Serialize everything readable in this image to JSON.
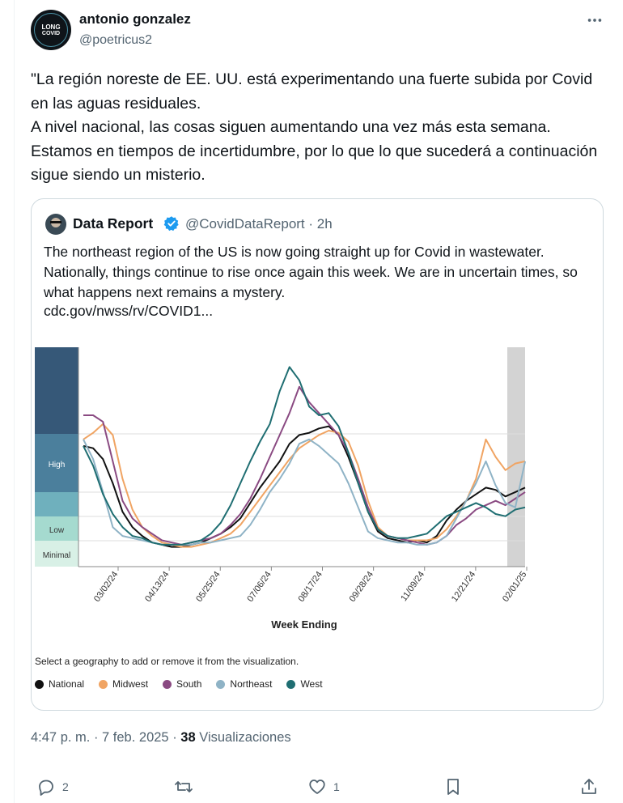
{
  "author": {
    "name": "antonio gonzalez",
    "handle": "@poetricus2",
    "avatar_text_top": "LONG",
    "avatar_text_bottom": "COVID"
  },
  "tweet_text": "\"La región noreste de EE. UU. está experimentando una fuerte subida por Covid en las aguas residuales.\n A nivel nacional, las cosas siguen aumentando una vez más esta semana. Estamos en tiempos de incertidumbre, por lo que lo que sucederá a continuación sigue siendo un misterio.",
  "quote": {
    "name": "Data Report",
    "handle": "@CovidDataReport · 2h",
    "text": "The northeast region of the US is now going straight up for Covid in wastewater. Nationally, things continue to rise once again this week. We are in uncertain times, so what happens next remains a mystery.",
    "link": "cdc.gov/nwss/rv/COVID1..."
  },
  "chart_data": {
    "type": "line",
    "xlabel": "Week Ending",
    "ylabel": "",
    "x_ticks": [
      "03/02/24",
      "04/13/24",
      "05/25/24",
      "07/06/24",
      "08/17/24",
      "09/28/24",
      "11/09/24",
      "12/21/24",
      "02/01/25"
    ],
    "levels": [
      "High",
      "Low",
      "Minimal"
    ],
    "ylim": [
      0,
      100
    ],
    "grid": true,
    "shaded_recent_weeks": true,
    "series": [
      {
        "name": "National",
        "color": "#111111",
        "values": [
          55,
          54,
          49,
          38,
          25,
          18,
          14,
          11,
          10,
          9,
          9,
          10,
          11,
          13,
          15,
          18,
          22,
          29,
          36,
          42,
          48,
          56,
          60,
          61,
          63,
          64,
          60,
          50,
          38,
          25,
          16,
          13,
          12,
          11,
          12,
          11,
          14,
          21,
          26,
          30,
          33,
          36,
          35,
          32,
          34,
          36
        ]
      },
      {
        "name": "Midwest",
        "color": "#f0a463",
        "values": [
          58,
          61,
          65,
          60,
          40,
          26,
          18,
          14,
          11,
          10,
          9,
          9,
          10,
          11,
          13,
          15,
          19,
          25,
          31,
          37,
          43,
          49,
          54,
          57,
          60,
          62,
          61,
          57,
          46,
          30,
          18,
          14,
          13,
          12,
          12,
          12,
          13,
          17,
          23,
          30,
          40,
          58,
          50,
          44,
          47,
          48
        ]
      },
      {
        "name": "South",
        "color": "#8a4a82",
        "values": [
          69,
          69,
          66,
          48,
          30,
          22,
          18,
          15,
          12,
          11,
          10,
          11,
          12,
          13,
          15,
          19,
          24,
          31,
          40,
          50,
          60,
          70,
          82,
          75,
          70,
          65,
          60,
          52,
          40,
          27,
          17,
          14,
          13,
          12,
          11,
          10,
          11,
          14,
          19,
          22,
          26,
          28,
          30,
          28,
          31,
          34
        ]
      },
      {
        "name": "Northeast",
        "color": "#8fb3c6",
        "values": [
          58,
          49,
          34,
          18,
          14,
          13,
          12,
          11,
          10,
          10,
          10,
          10,
          11,
          11,
          12,
          13,
          14,
          19,
          26,
          34,
          40,
          47,
          56,
          58,
          55,
          51,
          47,
          38,
          27,
          16,
          13,
          12,
          11,
          11,
          10,
          10,
          11,
          14,
          22,
          30,
          38,
          48,
          37,
          29,
          27,
          48
        ]
      },
      {
        "name": "West",
        "color": "#1f6e72",
        "values": [
          55,
          46,
          33,
          24,
          18,
          14,
          13,
          11,
          10,
          10,
          10,
          11,
          12,
          15,
          20,
          28,
          38,
          48,
          57,
          65,
          80,
          91,
          85,
          73,
          69,
          70,
          64,
          52,
          38,
          25,
          17,
          14,
          13,
          13,
          14,
          15,
          19,
          23,
          25,
          27,
          29,
          27,
          24,
          23,
          26,
          27
        ]
      }
    ]
  },
  "chart_hint": "Select a geography to add or remove it from the visualization.",
  "meta": {
    "time_date": "4:47 p. m. · 7 feb. 2025 ·",
    "views_count": "38",
    "views_label": "Visualizaciones"
  },
  "actions": {
    "replies": "2",
    "likes": "1"
  },
  "colors": {
    "accent": "#1d9bf0",
    "band_high": "#365878",
    "band_mid": "#4b7f9c",
    "band_mid2": "#6fb0bd",
    "band_low": "#a5dacf",
    "band_minimal": "#d8f0e6",
    "shade": "#d3d3d3"
  },
  "icons": [
    "more-icon",
    "verified-icon",
    "reply-icon",
    "retweet-icon",
    "like-icon",
    "bookmark-icon",
    "share-icon"
  ]
}
